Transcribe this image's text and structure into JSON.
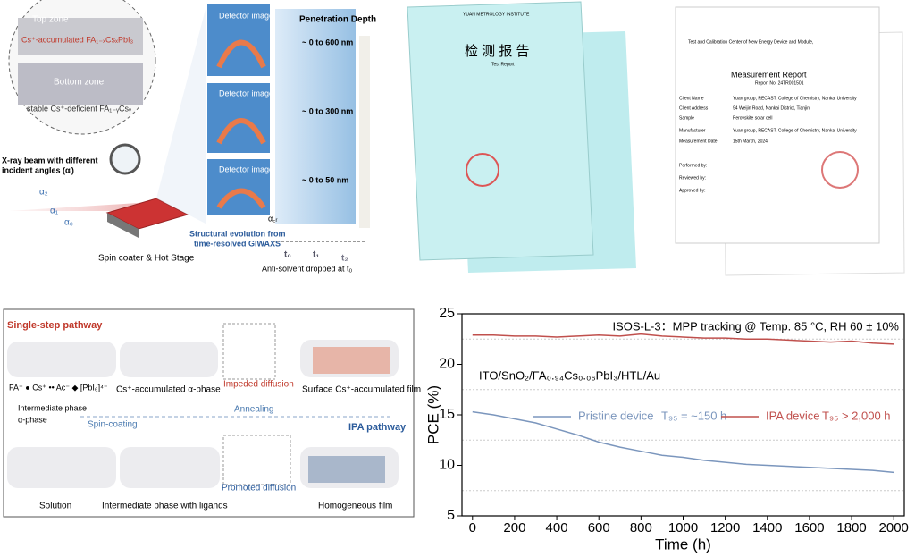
{
  "panel_a": {
    "top_zone": "Top zone",
    "top_phase": "Cs⁺-accumulated FA₁₋ₓCsₓPbI₃",
    "bottom_zone": "Bottom zone",
    "bottom_phase": "stable Cs⁺-deficient FA₁₋ᵧCsᵧ",
    "beam_1": "X-ray beam with different",
    "beam_2": "incident angles (αᵢ)",
    "alpha_2": "α₂",
    "alpha_1": "α₁",
    "alpha_0": "α₀",
    "alpha_cr": "α꜀ᵣ",
    "detector": [
      "Detector image",
      "Detector image",
      "Detector image"
    ],
    "depth_title": "Penetration Depth",
    "depths": [
      "~ 0 to 600 nm",
      "~ 0 to 300 nm",
      "~ 0 to 50 nm"
    ],
    "evolution_1": "Structural evolution from",
    "evolution_2": "time-resolved GIWAXS",
    "stage": "Spin coater & Hot Stage",
    "times": [
      "t₀",
      "t₁",
      "t₂"
    ],
    "anti_solvent": "Anti-solvent dropped at t₀"
  },
  "panel_b": {
    "cert_title": "检 测 报 告",
    "cert_sub": "Test Report",
    "institute": "YUAN METROLOGY INSTITUTE",
    "report_title": "Measurement Report",
    "report_no": "Report No. 24TR001501",
    "center": "Test and Calibration Center of New Energy Device and Module,",
    "rows": [
      [
        "Client Name",
        "Yuan group, RECAST, College of Chemistry, Nankai University"
      ],
      [
        "Client Address",
        "94 Weijin Road, Nankai District, Tianjin"
      ],
      [
        "Sample",
        "Perovskite solar cell"
      ],
      [
        "Manufacturer",
        "Yuan group, RECAST, College of Chemistry, Nankai University"
      ],
      [
        "Measurement Date",
        "15th March, 2024"
      ]
    ],
    "signers": [
      "Performed by:",
      "Reviewed by:",
      "Approved by:"
    ]
  },
  "panel_c": {
    "single": "Single-step pathway",
    "ipa": "IPA pathway",
    "legend_ions": "FA⁺  ● Cs⁺  •• Ac⁻  ◆ [PbI₆]⁴⁻",
    "legend_inter": "Intermediate phase",
    "legend_alpha": "α-phase",
    "cs_alpha": "Cs⁺-accumulated α-phase",
    "impeded": "Impeded diffusion",
    "surface": "Surface Cs⁺-accumulated film",
    "spin": "Spin-coating",
    "anneal": "Annealing",
    "solution": "Solution",
    "inter_lig": "Intermediate phase with ligands",
    "promoted": "Promoted diffusion",
    "homog": "Homogeneous film"
  },
  "chart_data": {
    "type": "line",
    "xlabel": "Time (h)",
    "ylabel": "PCE (%)",
    "xlim": [
      -50,
      2050
    ],
    "ylim": [
      5,
      25
    ],
    "xticks": [
      0,
      200,
      400,
      600,
      800,
      1000,
      1200,
      1400,
      1600,
      1800,
      2000
    ],
    "yticks": [
      5,
      10,
      15,
      20,
      25
    ],
    "minor_grid": [
      7.5,
      12.5,
      17.5,
      22.5
    ],
    "x": [
      0,
      100,
      200,
      300,
      400,
      500,
      600,
      700,
      800,
      900,
      1000,
      1100,
      1200,
      1300,
      1400,
      1500,
      1600,
      1700,
      1800,
      1900,
      2000
    ],
    "series": [
      {
        "name": "Pristine device",
        "color": "#7b96bd",
        "values": [
          15.3,
          15.0,
          14.6,
          14.2,
          13.6,
          13.0,
          12.3,
          11.8,
          11.4,
          11.0,
          10.8,
          10.5,
          10.3,
          10.1,
          10.0,
          9.9,
          9.8,
          9.7,
          9.6,
          9.5,
          9.3
        ]
      },
      {
        "name": "IPA device",
        "color": "#c0504d",
        "values": [
          22.9,
          22.9,
          22.8,
          22.8,
          22.7,
          22.8,
          22.9,
          22.8,
          23.0,
          22.8,
          22.7,
          22.6,
          22.6,
          22.5,
          22.5,
          22.4,
          22.3,
          22.2,
          22.3,
          22.1,
          22.0
        ]
      }
    ],
    "annotations": [
      "ISOS-L-3：MPP tracking @ Temp. 85 °C, RH 60 ± 10%",
      "ITO/SnO₂/FA₀.₉₄Cs₀.₀₆PbI₃/HTL/Au",
      "T₉₅ = ~150 h",
      "T₉₅ > 2,000 h"
    ]
  }
}
